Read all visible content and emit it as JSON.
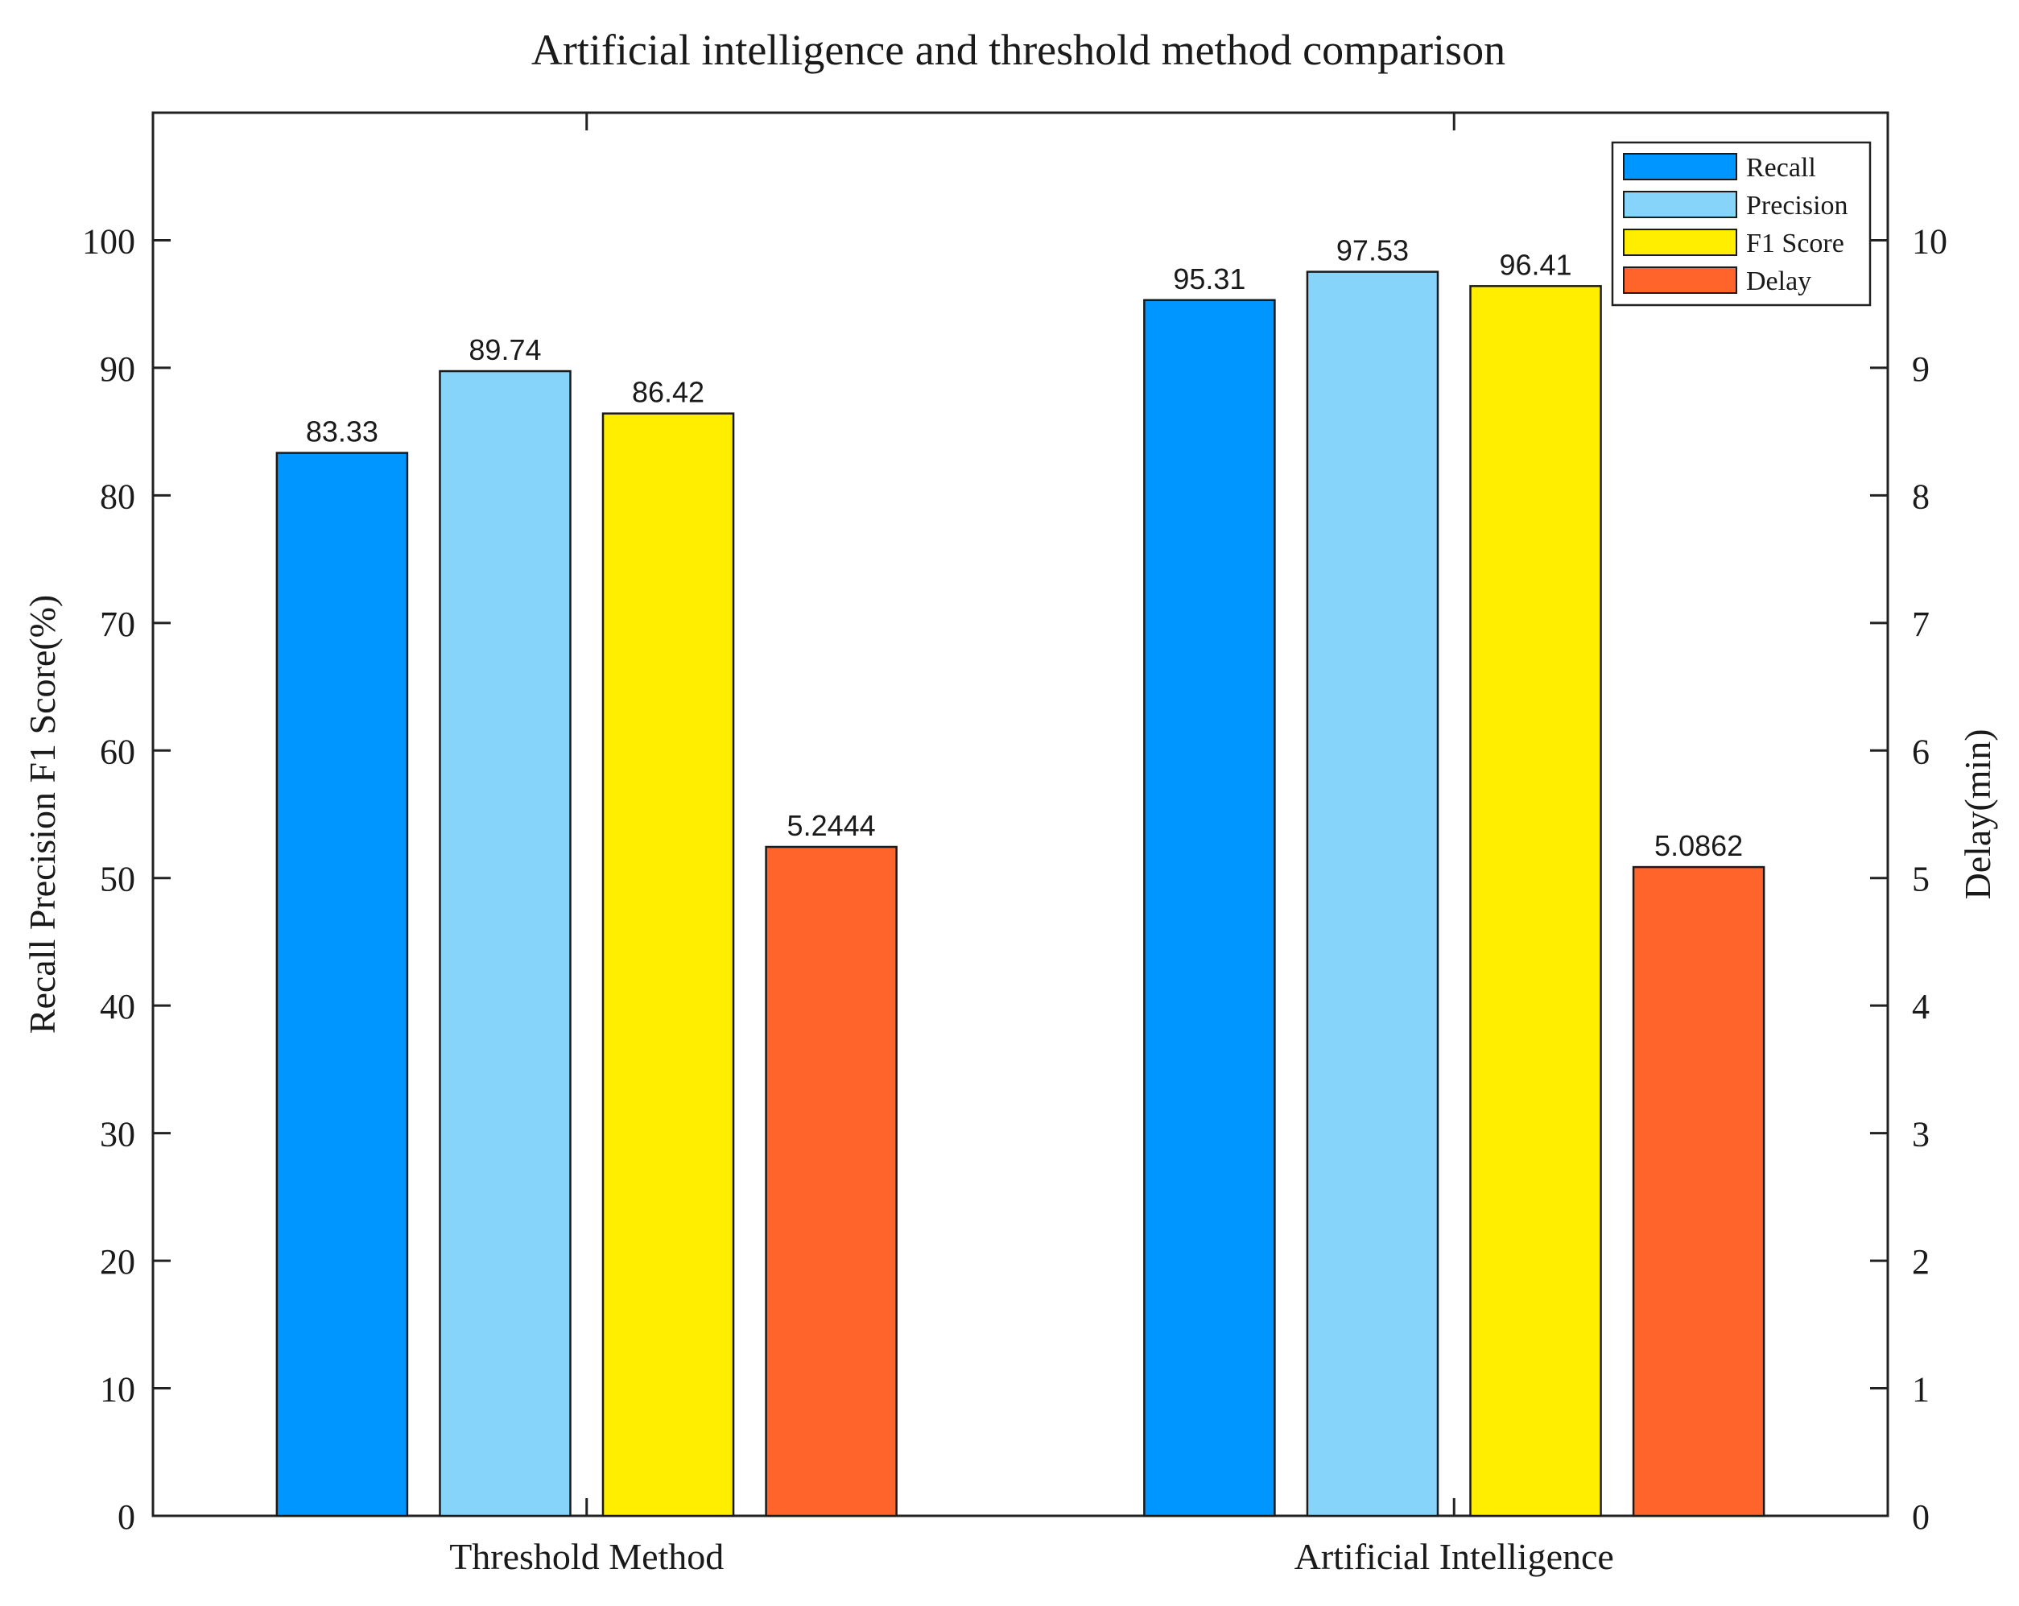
{
  "chart_data": {
    "type": "bar",
    "title": "Artificial intelligence and threshold method comparison",
    "ylabel": "Recall Precision  F1 Score(%)",
    "y2label": "Delay(min)",
    "xlabel": "",
    "categories": [
      "Threshold Method",
      "Artificial Intelligence"
    ],
    "ylim": [
      0,
      110
    ],
    "y2lim": [
      0,
      11
    ],
    "yticks": [
      0,
      10,
      20,
      30,
      40,
      50,
      60,
      70,
      80,
      90,
      100
    ],
    "y2ticks": [
      0,
      1,
      2,
      3,
      4,
      5,
      6,
      7,
      8,
      9,
      10
    ],
    "grid": false,
    "legend_position": "top-right",
    "series": [
      {
        "name": "Recall",
        "axis": "left",
        "color": "#0096FF",
        "values": [
          83.33,
          95.31
        ],
        "labels": [
          "83.33",
          "95.31"
        ]
      },
      {
        "name": "Precision",
        "axis": "left",
        "color": "#87D4FA",
        "values": [
          89.74,
          97.53
        ],
        "labels": [
          "89.74",
          "97.53"
        ]
      },
      {
        "name": "F1 Score",
        "axis": "left",
        "color": "#FFEE00",
        "values": [
          86.42,
          96.41
        ],
        "labels": [
          "86.42",
          "96.41"
        ]
      },
      {
        "name": "Delay",
        "axis": "right",
        "color": "#FF642A",
        "values": [
          5.2444,
          5.0862
        ],
        "labels": [
          "5.2444",
          "5.0862"
        ]
      }
    ]
  }
}
